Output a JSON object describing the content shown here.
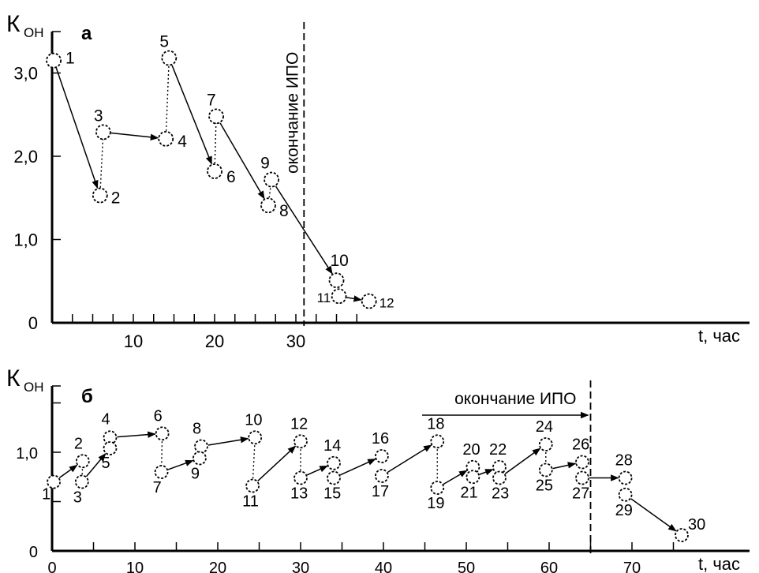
{
  "chart_data": [
    {
      "type": "scatter",
      "panel_label": "а",
      "title": "",
      "ylabel_main": "К",
      "ylabel_sub": "ОН",
      "xlabel": "t, час",
      "xlim": [
        0,
        43
      ],
      "ylim": [
        0,
        3.6
      ],
      "x_ticks": [
        10,
        20,
        30
      ],
      "x_tick_labels": [
        "10",
        "20",
        "30"
      ],
      "x_minor_ticks": [
        2.5,
        5,
        7.5,
        10,
        12.5,
        15,
        17.5,
        20,
        22.5,
        25,
        27.5,
        30,
        32.5,
        35,
        37.5
      ],
      "y_ticks": [
        0,
        1.0,
        2.0,
        3.0
      ],
      "y_tick_labels": [
        "0",
        "1,0",
        "2,0",
        "3,0"
      ],
      "grid": false,
      "points": [
        {
          "label": "1",
          "x": 0.2,
          "y": 3.15
        },
        {
          "label": "2",
          "x": 5.9,
          "y": 1.53
        },
        {
          "label": "3",
          "x": 6.3,
          "y": 2.29
        },
        {
          "label": "4",
          "x": 14.0,
          "y": 2.21
        },
        {
          "label": "5",
          "x": 14.4,
          "y": 3.18
        },
        {
          "label": "6",
          "x": 20.0,
          "y": 1.82
        },
        {
          "label": "7",
          "x": 20.2,
          "y": 2.48
        },
        {
          "label": "8",
          "x": 26.6,
          "y": 1.41
        },
        {
          "label": "9",
          "x": 27.0,
          "y": 1.72
        },
        {
          "label": "10",
          "x": 35.0,
          "y": 0.51
        },
        {
          "label": "11",
          "x": 35.3,
          "y": 0.32
        },
        {
          "label": "12",
          "x": 39.0,
          "y": 0.26
        }
      ],
      "arrows": [
        [
          1,
          2
        ],
        [
          3,
          4
        ],
        [
          5,
          6
        ],
        [
          7,
          8
        ],
        [
          9,
          10
        ],
        [
          11,
          12
        ]
      ],
      "jumps": [
        [
          2,
          3
        ],
        [
          4,
          5
        ],
        [
          6,
          7
        ],
        [
          8,
          9
        ]
      ],
      "vline": {
        "x": 31.0,
        "label": "окончание ИПО"
      }
    },
    {
      "type": "scatter",
      "panel_label": "б",
      "title": "",
      "ylabel_main": "К",
      "ylabel_sub": "ОН",
      "xlabel": "t, час",
      "xlim": [
        0,
        83
      ],
      "ylim": [
        0,
        1.75
      ],
      "x_ticks": [
        0,
        10,
        20,
        30,
        40,
        50,
        60,
        70
      ],
      "x_tick_labels": [
        "0",
        "10",
        "20",
        "30",
        "40",
        "50",
        "60",
        "70"
      ],
      "x_minor_ticks": [
        5,
        10,
        15,
        20,
        25,
        30,
        35,
        40,
        45,
        50,
        55,
        60,
        65,
        70,
        75
      ],
      "y_ticks": [
        0,
        1.0
      ],
      "y_tick_labels": [
        "0",
        "1,0"
      ],
      "y_minor_ticks": [
        0.5,
        1.5
      ],
      "grid": false,
      "points": [
        {
          "label": "1",
          "x": 0.2,
          "y": 0.7
        },
        {
          "label": "2",
          "x": 3.7,
          "y": 0.91
        },
        {
          "label": "3",
          "x": 3.6,
          "y": 0.7
        },
        {
          "label": "4",
          "x": 7.0,
          "y": 1.15
        },
        {
          "label": "5",
          "x": 7.0,
          "y": 1.04
        },
        {
          "label": "6",
          "x": 13.3,
          "y": 1.19
        },
        {
          "label": "7",
          "x": 13.2,
          "y": 0.8
        },
        {
          "label": "8",
          "x": 18.0,
          "y": 1.06
        },
        {
          "label": "9",
          "x": 17.8,
          "y": 0.94
        },
        {
          "label": "10",
          "x": 24.5,
          "y": 1.15
        },
        {
          "label": "11",
          "x": 24.2,
          "y": 0.66
        },
        {
          "label": "12",
          "x": 30.0,
          "y": 1.11
        },
        {
          "label": "13",
          "x": 30.0,
          "y": 0.74
        },
        {
          "label": "14",
          "x": 34.0,
          "y": 0.89
        },
        {
          "label": "15",
          "x": 34.0,
          "y": 0.74
        },
        {
          "label": "16",
          "x": 39.8,
          "y": 0.96
        },
        {
          "label": "17",
          "x": 39.8,
          "y": 0.76
        },
        {
          "label": "18",
          "x": 46.5,
          "y": 1.11
        },
        {
          "label": "19",
          "x": 46.5,
          "y": 0.64
        },
        {
          "label": "20",
          "x": 50.8,
          "y": 0.85
        },
        {
          "label": "21",
          "x": 50.8,
          "y": 0.75
        },
        {
          "label": "22",
          "x": 54.0,
          "y": 0.85
        },
        {
          "label": "23",
          "x": 54.0,
          "y": 0.74
        },
        {
          "label": "24",
          "x": 59.6,
          "y": 1.08
        },
        {
          "label": "25",
          "x": 59.6,
          "y": 0.82
        },
        {
          "label": "26",
          "x": 64.0,
          "y": 0.9
        },
        {
          "label": "27",
          "x": 64.0,
          "y": 0.74
        },
        {
          "label": "28",
          "x": 69.2,
          "y": 0.74
        },
        {
          "label": "29",
          "x": 69.2,
          "y": 0.57
        },
        {
          "label": "30",
          "x": 76.0,
          "y": 0.16
        }
      ],
      "arrows": [
        [
          1,
          2
        ],
        [
          3,
          5
        ],
        [
          4,
          6
        ],
        [
          7,
          9
        ],
        [
          8,
          10
        ],
        [
          11,
          12
        ],
        [
          13,
          14
        ],
        [
          15,
          16
        ],
        [
          17,
          18
        ],
        [
          19,
          20
        ],
        [
          21,
          22
        ],
        [
          23,
          24
        ],
        [
          25,
          26
        ],
        [
          27,
          28
        ],
        [
          29,
          30
        ]
      ],
      "jumps": [
        [
          2,
          3
        ],
        [
          6,
          7
        ],
        [
          10,
          11
        ],
        [
          12,
          13
        ],
        [
          18,
          19
        ],
        [
          24,
          25
        ]
      ],
      "vline": {
        "x": 65.0,
        "label": "окончание ИПО"
      }
    }
  ]
}
